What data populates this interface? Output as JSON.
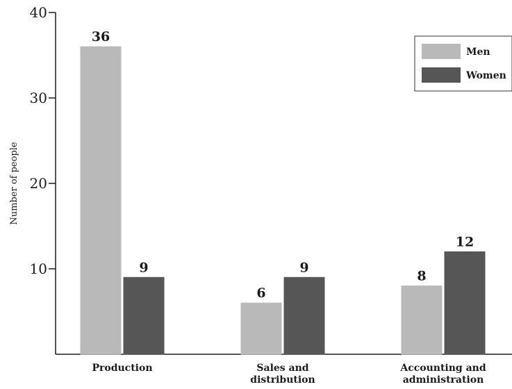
{
  "chart_data": {
    "type": "bar",
    "categories": [
      [
        "Production"
      ],
      [
        "Sales and",
        "distribution"
      ],
      [
        "Accounting and",
        "administration"
      ]
    ],
    "series": [
      {
        "name": "Men",
        "values": [
          36,
          6,
          8
        ],
        "color": "#b9b9b9"
      },
      {
        "name": "Women",
        "values": [
          9,
          9,
          12
        ],
        "color": "#565656"
      }
    ],
    "ylabel": "Number of people",
    "ylim": [
      0,
      40
    ],
    "yticks": [
      10,
      20,
      30,
      40
    ],
    "grid": false,
    "legend": "top-right"
  }
}
